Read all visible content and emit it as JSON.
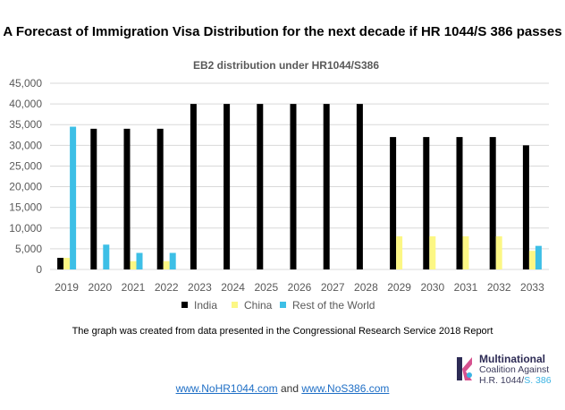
{
  "page": {
    "title": "A Forecast of Immigration Visa Distribution for the next decade if HR 1044/S 386 passes",
    "source_note": "The graph was created from data presented in the Congressional Research Service 2018 Report",
    "logo": {
      "line1": "Multinational",
      "line2": "Coalition Against",
      "line3_a": "H.R. 1044/",
      "line3_b": "S. 386"
    },
    "footer": {
      "link1": "www.NoHR1044.com",
      "conjunction": "and",
      "link2": "www.NoS386.com"
    }
  },
  "colors": {
    "india": "#000000",
    "china": "#fcf784",
    "rest": "#3dbfe6",
    "grid": "#d9d9d9",
    "axis_text": "#595959"
  },
  "chart_data": {
    "type": "bar",
    "title": "EB2 distribution under HR1044/S386",
    "xlabel": "",
    "ylabel": "",
    "ylim": [
      0,
      45000
    ],
    "yticks": [
      0,
      5000,
      10000,
      15000,
      20000,
      25000,
      30000,
      35000,
      40000,
      45000
    ],
    "ytick_labels": [
      "0",
      "5,000",
      "10,000",
      "15,000",
      "20,000",
      "25,000",
      "30,000",
      "35,000",
      "40,000",
      "45,000"
    ],
    "categories": [
      "2019",
      "2020",
      "2021",
      "2022",
      "2023",
      "2024",
      "2025",
      "2026",
      "2027",
      "2028",
      "2029",
      "2030",
      "2031",
      "2032",
      "2033"
    ],
    "series": [
      {
        "name": "India",
        "values": [
          2800,
          34000,
          34000,
          34000,
          40000,
          40000,
          40000,
          40000,
          40000,
          40000,
          32000,
          32000,
          32000,
          32000,
          30000
        ]
      },
      {
        "name": "China",
        "values": [
          2800,
          0,
          2000,
          2000,
          0,
          0,
          0,
          0,
          0,
          0,
          8000,
          8000,
          8000,
          8000,
          4500
        ]
      },
      {
        "name": "Rest of the World",
        "values": [
          34500,
          6000,
          4000,
          4000,
          0,
          0,
          0,
          0,
          0,
          0,
          0,
          0,
          0,
          0,
          5700
        ]
      }
    ],
    "legend_position": "bottom"
  }
}
